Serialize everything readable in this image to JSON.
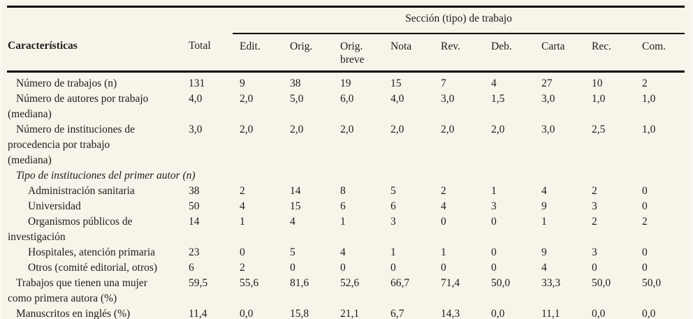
{
  "page": {
    "background": "#f8f4e9",
    "text_color": "#1c1c1c",
    "rule_color": "#000000"
  },
  "table": {
    "group_header": "Sección (tipo) de trabajo",
    "row_header": "Características",
    "columns": [
      "Total",
      "Edit.",
      "Orig.",
      "Orig.\nbreve",
      "Nota",
      "Rev.",
      "Deb.",
      "Carta",
      "Rec.",
      "Com."
    ],
    "rows": [
      {
        "label": "Número de trabajos (n)",
        "indent": 0,
        "italic": false,
        "values": [
          "131",
          "9",
          "38",
          "19",
          "15",
          "7",
          "4",
          "27",
          "10",
          "2"
        ]
      },
      {
        "label": "Número de autores por trabajo\n(mediana)",
        "indent": 0,
        "italic": false,
        "values": [
          "4,0",
          "2,0",
          "5,0",
          "6,0",
          "4,0",
          "3,0",
          "1,5",
          "3,0",
          "1,0",
          "1,0"
        ]
      },
      {
        "label": "Número de instituciones de\nprocedencia por trabajo\n(mediana)",
        "indent": 0,
        "italic": false,
        "values": [
          "3,0",
          "2,0",
          "2,0",
          "2,0",
          "2,0",
          "2,0",
          "2,0",
          "3,0",
          "2,5",
          "1,0"
        ]
      },
      {
        "label": "Tipo de instituciones del primer autor (n)",
        "indent": 0,
        "italic": true,
        "values": []
      },
      {
        "label": "Administración sanitaria",
        "indent": 1,
        "italic": false,
        "values": [
          "38",
          "2",
          "14",
          "8",
          "5",
          "2",
          "1",
          "4",
          "2",
          "0"
        ]
      },
      {
        "label": "Universidad",
        "indent": 1,
        "italic": false,
        "values": [
          "50",
          "4",
          "15",
          "6",
          "6",
          "4",
          "3",
          "9",
          "3",
          "0"
        ]
      },
      {
        "label": "Organismos públicos de\ninvestigación",
        "indent": 1,
        "italic": false,
        "values": [
          "14",
          "1",
          "4",
          "1",
          "3",
          "0",
          "0",
          "1",
          "2",
          "2"
        ]
      },
      {
        "label": "Hospitales, atención primaria",
        "indent": 1,
        "italic": false,
        "values": [
          "23",
          "0",
          "5",
          "4",
          "1",
          "1",
          "0",
          "9",
          "3",
          "0"
        ]
      },
      {
        "label": "Otros (comité editorial, otros)",
        "indent": 1,
        "italic": false,
        "values": [
          "6",
          "2",
          "0",
          "0",
          "0",
          "0",
          "0",
          "4",
          "0",
          "0"
        ]
      },
      {
        "label": "Trabajos que tienen una mujer\ncomo primera autora (%)",
        "indent": 0,
        "italic": false,
        "values": [
          "59,5",
          "55,6",
          "81,6",
          "52,6",
          "66,7",
          "71,4",
          "50,0",
          "33,3",
          "50,0",
          "50,0"
        ]
      },
      {
        "label": "Manuscritos en inglés (%)",
        "indent": 0,
        "italic": false,
        "values": [
          "11,4",
          "0,0",
          "15,8",
          "21,1",
          "6,7",
          "14,3",
          "0,0",
          "11,1",
          "0,0",
          "0,0"
        ]
      }
    ]
  }
}
